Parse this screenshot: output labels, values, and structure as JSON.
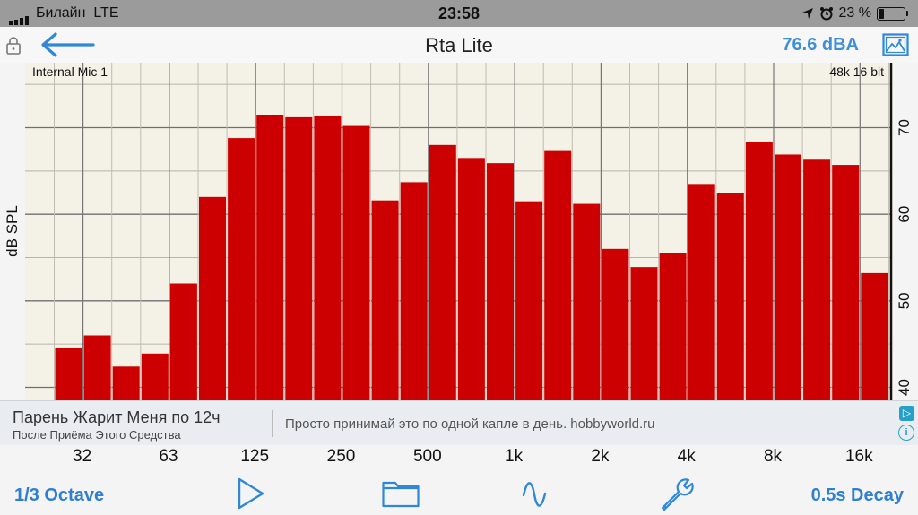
{
  "status": {
    "carrier": "Билайн",
    "network": "LTE",
    "time": "23:58",
    "battery": "23 %",
    "battery_level": 23
  },
  "nav": {
    "title": "Rta Lite",
    "spl": "76.6 dBA",
    "icons": [
      "lock-icon",
      "back-arrow-icon",
      "image-icon"
    ]
  },
  "chart_data": {
    "type": "bar",
    "ylabel": "dB SPL",
    "ylim": [
      38.5,
      77.5
    ],
    "yticks": [
      40,
      50,
      60,
      70
    ],
    "source_label": "Internal Mic 1",
    "format_label": "48k 16 bit",
    "x_tick_labels": [
      "32",
      "63",
      "125",
      "250",
      "500",
      "1k",
      "2k",
      "4k",
      "8k",
      "16k"
    ],
    "bar_color": "#cc0000",
    "values": [
      44.5,
      46,
      42.4,
      43.9,
      52,
      62,
      68.8,
      71.5,
      71.2,
      71.3,
      70.2,
      61.6,
      63.7,
      68,
      66.5,
      65.9,
      61.5,
      67.3,
      61.2,
      56,
      53.9,
      55.5,
      63.5,
      62.4,
      68.3,
      66.9,
      66.3,
      65.7,
      53.2
    ]
  },
  "ad": {
    "headline": "Парень Жарит Меня по 12ч",
    "sub": "После Приёма Этого Средства",
    "text": "Просто принимай это по одной капле в день. hobbyworld.ru",
    "badge": "▷",
    "info": "i"
  },
  "toolbar": {
    "octave": "1/3 Octave",
    "decay": "0.5s Decay",
    "icons": [
      "play-icon",
      "folder-icon",
      "wave-icon",
      "wrench-icon"
    ],
    "accent": "#2f7fd1"
  }
}
